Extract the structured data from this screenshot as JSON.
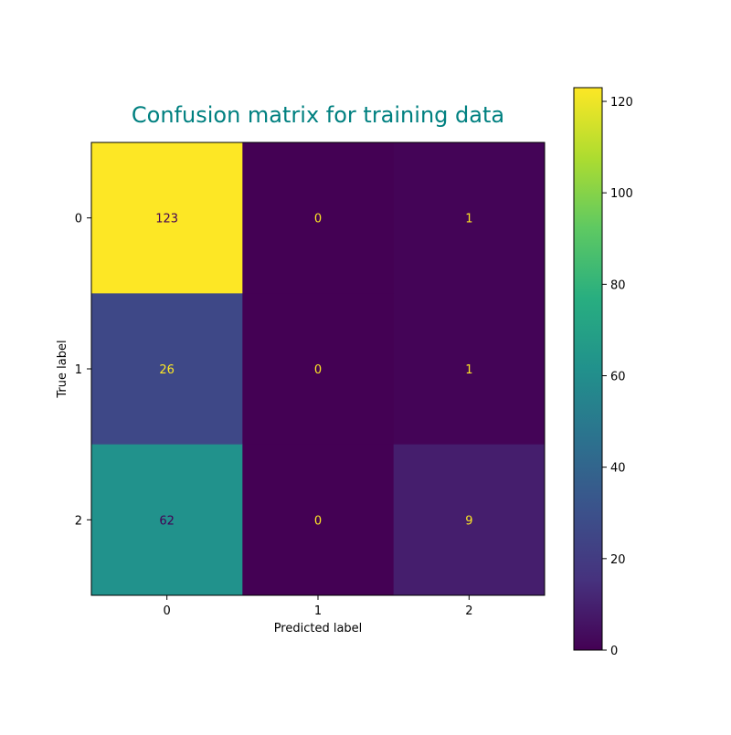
{
  "chart_data": {
    "type": "heatmap",
    "title": "Confusion matrix for training data",
    "xlabel": "Predicted label",
    "ylabel": "True label",
    "x_categories": [
      "0",
      "1",
      "2"
    ],
    "y_categories": [
      "0",
      "1",
      "2"
    ],
    "values": [
      [
        123,
        0,
        1
      ],
      [
        26,
        0,
        1
      ],
      [
        62,
        0,
        9
      ]
    ],
    "colormap": "viridis",
    "colorbar": {
      "range": [
        0,
        123
      ],
      "ticks": [
        0,
        20,
        40,
        60,
        80,
        100,
        120
      ]
    },
    "grid": false
  },
  "colors": {
    "title": "#008080",
    "text_on_dark": "#fde725",
    "text_on_light": "#440154"
  }
}
